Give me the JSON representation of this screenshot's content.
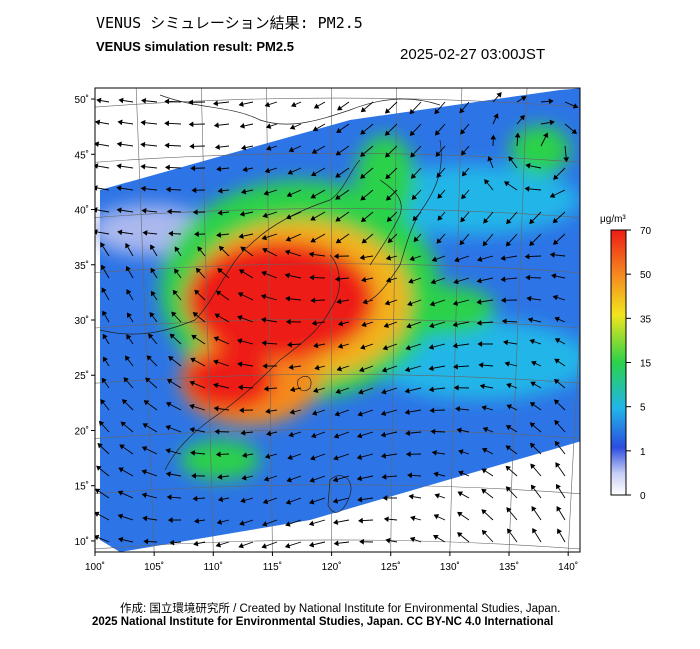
{
  "header": {
    "title_ja": "VENUS シミュレーション結果: PM2.5",
    "title_en": "VENUS simulation result: PM2.5",
    "timestamp": "2025-02-27 03:00JST"
  },
  "map": {
    "lon_ticks": [
      "100˚",
      "105˚",
      "110˚",
      "115˚",
      "120˚",
      "125˚",
      "130˚",
      "135˚",
      "140˚"
    ],
    "lat_ticks": [
      "50˚",
      "45˚",
      "40˚",
      "35˚",
      "30˚",
      "25˚",
      "20˚",
      "15˚",
      "10˚"
    ],
    "lon_range": [
      100,
      141
    ],
    "lat_range": [
      9,
      51
    ]
  },
  "colorbar": {
    "unit_label": "μg/m³",
    "tick_labels": [
      "70",
      "50",
      "35",
      "15",
      "5",
      "1",
      "0"
    ],
    "colors": [
      "#ffffff",
      "#2b4de0",
      "#21b6e8",
      "#2bd14a",
      "#f2e51d",
      "#f58a1f",
      "#ee1c14"
    ]
  },
  "footer": {
    "credit": "作成: 国立環境研究所 / Created by National Institute for Environmental Studies, Japan.",
    "copyright": "2025 National Institute for Environmental Studies, Japan. CC BY-NC 4.0 International"
  }
}
